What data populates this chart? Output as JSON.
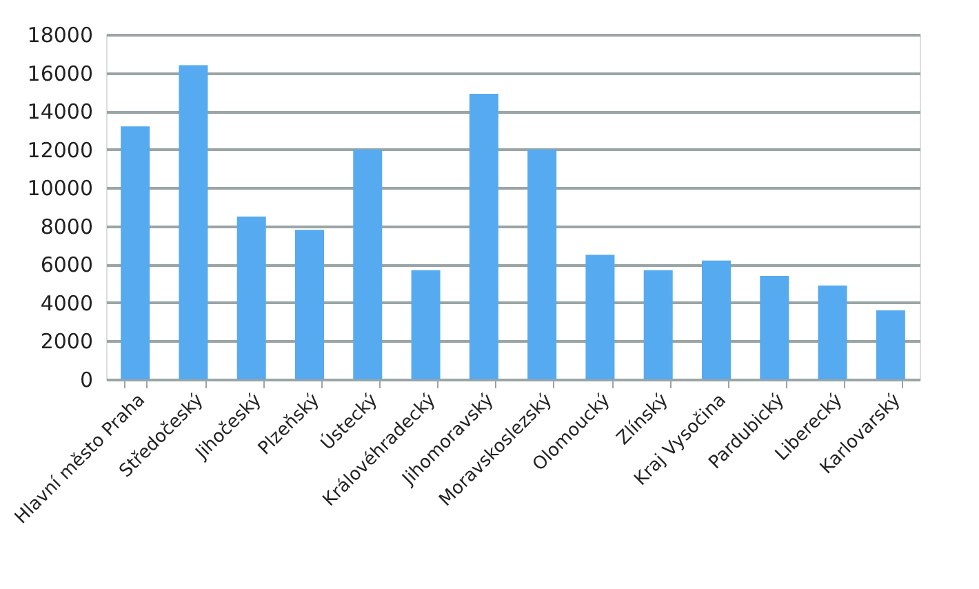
{
  "chart_data": {
    "type": "bar",
    "categories": [
      "Hlavní město Praha",
      "Středočeský",
      "Jihočeský",
      "Plzeňský",
      "Ústecký",
      "Královéhradecký",
      "Jihomoravský",
      "Moravskoslezský",
      "Olomoucký",
      "Zlínský",
      "Kraj Vysočina",
      "Pardubický",
      "Liberecký",
      "Karlovarský"
    ],
    "values": [
      13200,
      16400,
      8500,
      7800,
      12000,
      5700,
      14900,
      12000,
      6500,
      5700,
      6200,
      5400,
      4900,
      3600
    ],
    "color": "#56aaf0",
    "ylim": [
      0,
      18000
    ],
    "yticks": [
      0,
      2000,
      4000,
      6000,
      8000,
      10000,
      12000,
      14000,
      16000,
      18000
    ],
    "grid": "y"
  }
}
